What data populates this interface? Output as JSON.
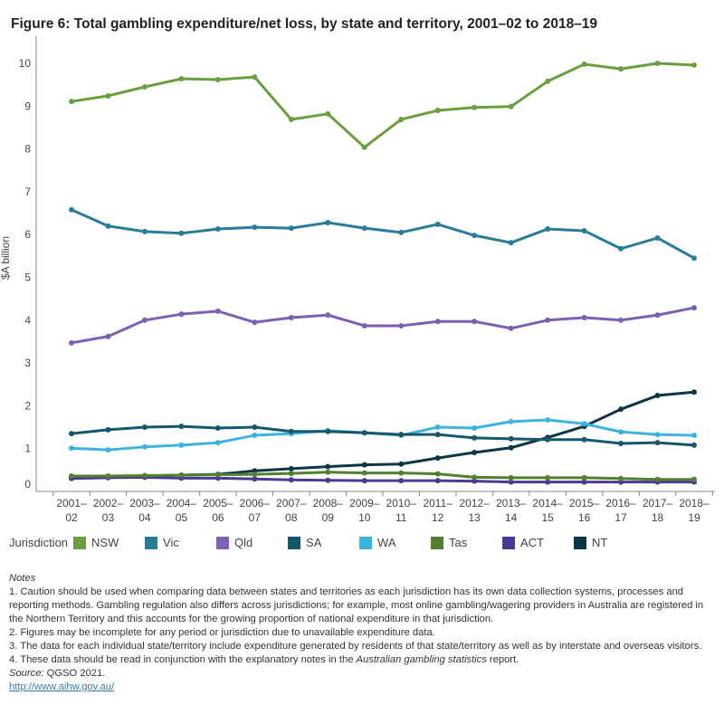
{
  "title": "Figure 6: Total gambling expenditure/net loss, by state and territory, 2001–02 to 2018–19",
  "chart_data": {
    "type": "line",
    "title": "Figure 6: Total gambling expenditure/net loss, by state and territory, 2001–02 to 2018–19",
    "xlabel": "",
    "ylabel": "$A billion",
    "ylim": [
      0,
      10.5
    ],
    "yticks": [
      0,
      1,
      2,
      3,
      4,
      5,
      6,
      7,
      8,
      9,
      10
    ],
    "grid": false,
    "legend_title": "Jurisdiction",
    "legend_position": "bottom",
    "categories": [
      [
        "2001–",
        "02"
      ],
      [
        "2002–",
        "03"
      ],
      [
        "2003–",
        "04"
      ],
      [
        "2004–",
        "05"
      ],
      [
        "2005–",
        "06"
      ],
      [
        "2006–",
        "07"
      ],
      [
        "2007–",
        "08"
      ],
      [
        "2008–",
        "09"
      ],
      [
        "2009–",
        "10"
      ],
      [
        "2010–",
        "11"
      ],
      [
        "2011–",
        "12"
      ],
      [
        "2012–",
        "13"
      ],
      [
        "2013–",
        "14"
      ],
      [
        "2014–",
        "15"
      ],
      [
        "2015–",
        "16"
      ],
      [
        "2016–",
        "17"
      ],
      [
        "2017–",
        "18"
      ],
      [
        "2018–",
        "19"
      ]
    ],
    "series": [
      {
        "name": "NSW",
        "color": "#6a9e3f",
        "values": [
          9.11,
          9.24,
          9.45,
          9.64,
          9.62,
          9.68,
          8.69,
          8.82,
          8.04,
          8.69,
          8.9,
          8.97,
          8.99,
          9.58,
          9.98,
          9.87,
          10.0,
          9.96
        ]
      },
      {
        "name": "Vic",
        "color": "#2a7c97",
        "values": [
          6.58,
          6.2,
          6.07,
          6.03,
          6.13,
          6.17,
          6.15,
          6.28,
          6.15,
          6.05,
          6.24,
          5.98,
          5.81,
          6.13,
          6.09,
          5.67,
          5.92,
          5.45
        ]
      },
      {
        "name": "Qld",
        "color": "#7d60b4",
        "values": [
          3.47,
          3.62,
          4.0,
          4.14,
          4.21,
          3.95,
          4.06,
          4.12,
          3.87,
          3.87,
          3.97,
          3.97,
          3.81,
          4.0,
          4.06,
          4.0,
          4.12,
          4.29
        ]
      },
      {
        "name": "SA",
        "color": "#17576e",
        "values": [
          1.35,
          1.44,
          1.5,
          1.52,
          1.48,
          1.5,
          1.4,
          1.4,
          1.37,
          1.33,
          1.33,
          1.25,
          1.23,
          1.21,
          1.21,
          1.12,
          1.14,
          1.08
        ]
      },
      {
        "name": "WA",
        "color": "#3bb4e0",
        "values": [
          1.01,
          0.97,
          1.04,
          1.08,
          1.14,
          1.31,
          1.35,
          1.42,
          1.37,
          1.31,
          1.5,
          1.48,
          1.63,
          1.67,
          1.58,
          1.39,
          1.33,
          1.31
        ]
      },
      {
        "name": "Tas",
        "color": "#52802f",
        "values": [
          0.36,
          0.36,
          0.37,
          0.38,
          0.39,
          0.4,
          0.42,
          0.45,
          0.43,
          0.43,
          0.41,
          0.33,
          0.32,
          0.32,
          0.32,
          0.3,
          0.28,
          0.28
        ]
      },
      {
        "name": "ACT",
        "color": "#4b3a94",
        "values": [
          0.3,
          0.32,
          0.33,
          0.31,
          0.31,
          0.29,
          0.27,
          0.26,
          0.25,
          0.25,
          0.25,
          0.24,
          0.22,
          0.22,
          0.22,
          0.22,
          0.22,
          0.22
        ]
      },
      {
        "name": "NT",
        "color": "#0a3645",
        "values": [
          0.32,
          0.34,
          0.36,
          0.38,
          0.4,
          0.48,
          0.53,
          0.58,
          0.62,
          0.64,
          0.78,
          0.91,
          1.02,
          1.26,
          1.52,
          1.92,
          2.24,
          2.32
        ]
      }
    ]
  },
  "notes": {
    "heading": "Notes",
    "n1": "1. Caution should be used when comparing data between states and territories as each jurisdiction has its own data collection systems, processes and reporting methods. Gambling regulation also differs across jurisdictions; for example, most online gambling/wagering providers in Australia are registered in the Northern Territory and this accounts for the growing proportion of national expenditure in that jurisdiction.",
    "n2": "2. Figures may be incomplete for any period or jurisdiction due to unavailable expenditure data.",
    "n3": "3. The data for each individual state/territory include expenditure generated by residents of that state/territory as well as by interstate and overseas visitors.",
    "n4_pre": "4. These data should be read in conjunction with the explanatory notes in the ",
    "n4_italic": "Australian gambling statistics",
    "n4_post": " report.",
    "source_label": "Source:",
    "source": " QGSO 2021.",
    "link": "http://www.aihw.gov.au/"
  }
}
